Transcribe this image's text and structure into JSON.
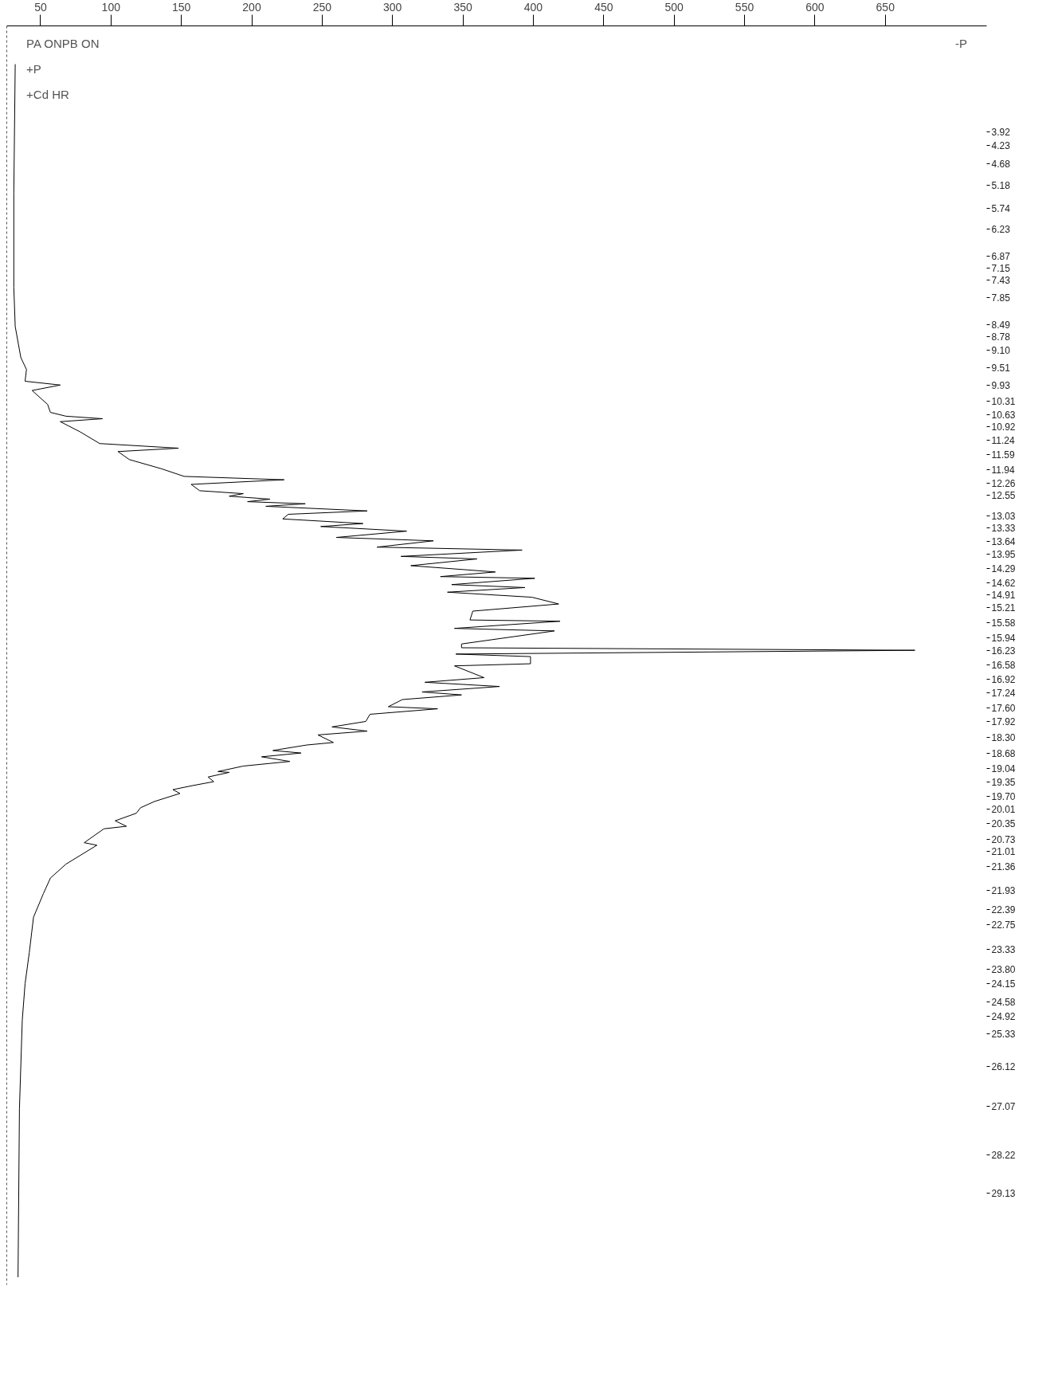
{
  "chart_data": {
    "type": "line",
    "orientation": "horizontal",
    "xlim": [
      26,
      722
    ],
    "ylim": [
      31.3,
      1.4
    ],
    "xticks": [
      50,
      100,
      150,
      200,
      250,
      300,
      350,
      400,
      450,
      500,
      550,
      600,
      650
    ],
    "yticks": [
      3.92,
      4.23,
      4.68,
      5.18,
      5.74,
      6.23,
      6.87,
      7.15,
      7.43,
      7.85,
      8.49,
      8.78,
      {
        "value": 9.1,
        "label": "9.10"
      },
      9.51,
      9.93,
      10.31,
      10.63,
      10.92,
      11.24,
      11.59,
      11.94,
      12.26,
      12.55,
      13.03,
      13.33,
      13.64,
      13.95,
      14.29,
      14.62,
      14.91,
      15.21,
      15.58,
      15.94,
      16.23,
      16.58,
      16.92,
      17.24,
      {
        "value": 17.6,
        "label": "17.60"
      },
      17.92,
      {
        "value": 18.3,
        "label": "18.30"
      },
      18.68,
      19.04,
      19.35,
      {
        "value": 19.7,
        "label": "19.70"
      },
      20.01,
      20.35,
      20.73,
      21.01,
      21.36,
      21.93,
      22.39,
      22.75,
      23.33,
      {
        "value": 23.8,
        "label": "23.80"
      },
      24.15,
      24.58,
      24.92,
      25.33,
      26.12,
      27.07,
      28.22,
      29.13
    ],
    "grid": false,
    "marker": "none",
    "line_style": "solid",
    "series": [
      {
        "color": "#000000",
        "x": [
          2.31,
          5.38,
          7.61,
          8.54,
          9.28,
          9.56,
          9.84,
          9.93,
          10.06,
          10.39,
          10.58,
          10.67,
          10.73,
          10.8,
          11.04,
          11.32,
          11.43,
          11.51,
          11.7,
          11.92,
          12.1,
          12.18,
          12.29,
          12.44,
          12.51,
          12.57,
          12.64,
          12.7,
          12.75,
          12.81,
          12.92,
          13.0,
          13.11,
          13.22,
          13.29,
          13.4,
          13.55,
          13.63,
          13.78,
          13.85,
          14.0,
          14.06,
          14.22,
          14.37,
          14.48,
          14.52,
          14.67,
          14.74,
          14.85,
          14.97,
          15.13,
          15.3,
          15.51,
          15.54,
          15.71,
          15.77,
          16.08,
          16.17,
          16.23,
          16.32,
          16.38,
          16.55,
          16.6,
          16.88,
          16.99,
          17.09,
          17.22,
          17.29,
          17.4,
          17.57,
          17.62,
          17.75,
          17.92,
          18.05,
          18.15,
          18.24,
          18.42,
          18.48,
          18.61,
          18.67,
          18.76,
          18.87,
          18.98,
          19.11,
          19.13,
          19.24,
          19.35,
          19.45,
          19.54,
          19.63,
          19.82,
          19.97,
          20.1,
          20.28,
          20.41,
          20.47,
          20.8,
          20.86,
          21.31,
          21.64,
          22.01,
          22.57,
          23.41,
          24.15,
          25.02,
          27.12,
          31.12
        ],
        "values": [
          32,
          31,
          31,
          32,
          36,
          40,
          39,
          64,
          44,
          55,
          57,
          68,
          94,
          64,
          78,
          92,
          148,
          105,
          113,
          136,
          152,
          223,
          157,
          163,
          194,
          184,
          213,
          197,
          238,
          210,
          282,
          226,
          222,
          279,
          249,
          310,
          260,
          329,
          289,
          392,
          306,
          360,
          313,
          373,
          334,
          401,
          342,
          394,
          339,
          399,
          418,
          357,
          355,
          419,
          344,
          415,
          349,
          349,
          671,
          345,
          398,
          398,
          344,
          365,
          323,
          376,
          321,
          349,
          307,
          297,
          332,
          284,
          281,
          257,
          282,
          247,
          258,
          239,
          215,
          235,
          207,
          227,
          194,
          176,
          184,
          169,
          173,
          157,
          144,
          149,
          131,
          121,
          118,
          103,
          111,
          95,
          81,
          90,
          68,
          57,
          52,
          45,
          42,
          39,
          37,
          35,
          34
        ]
      }
    ],
    "annotations": [
      "PA ONPB ON",
      "+P",
      "+Cd HR",
      "-P"
    ]
  }
}
